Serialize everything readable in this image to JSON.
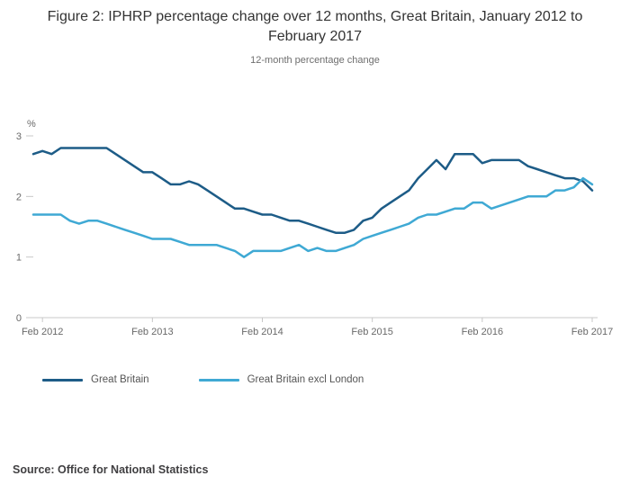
{
  "title": "Figure 2: IPHRP percentage change over 12 months, Great Britain, January 2012 to February 2017",
  "subtitle": "12-month percentage change",
  "source": "Source: Office for National Statistics",
  "colors": {
    "great_britain": "#1d5c87",
    "great_britain_excl_london": "#3fa9d4",
    "axis": "#c8c8c8",
    "tick_text": "#696969"
  },
  "chart_data": {
    "type": "line",
    "title": "Figure 2: IPHRP percentage change over 12 months, Great Britain, January 2012 to February 2017",
    "subtitle": "12-month percentage change",
    "ylabel": "%",
    "xlabel": "",
    "ylim": [
      0,
      3
    ],
    "yticks": [
      0,
      1,
      2,
      3
    ],
    "grid": false,
    "legend_position": "bottom",
    "x_period_start": "Jan 2012",
    "x_period_end": "Feb 2017",
    "xticks": [
      "Feb 2012",
      "Feb 2013",
      "Feb 2014",
      "Feb 2015",
      "Feb 2016",
      "Feb 2017"
    ],
    "xtick_indices": [
      1,
      13,
      25,
      37,
      49,
      61
    ],
    "series": [
      {
        "name": "Great Britain",
        "color": "#1d5c87",
        "values": [
          2.7,
          2.75,
          2.7,
          2.8,
          2.8,
          2.8,
          2.8,
          2.8,
          2.8,
          2.7,
          2.6,
          2.5,
          2.4,
          2.4,
          2.3,
          2.2,
          2.2,
          2.25,
          2.2,
          2.1,
          2.0,
          1.9,
          1.8,
          1.8,
          1.75,
          1.7,
          1.7,
          1.65,
          1.6,
          1.6,
          1.55,
          1.5,
          1.45,
          1.4,
          1.4,
          1.45,
          1.6,
          1.65,
          1.8,
          1.9,
          2.0,
          2.1,
          2.3,
          2.45,
          2.6,
          2.45,
          2.7,
          2.7,
          2.7,
          2.55,
          2.6,
          2.6,
          2.6,
          2.6,
          2.5,
          2.45,
          2.4,
          2.35,
          2.3,
          2.3,
          2.25,
          2.1
        ]
      },
      {
        "name": "Great Britain excl London",
        "color": "#3fa9d4",
        "values": [
          1.7,
          1.7,
          1.7,
          1.7,
          1.6,
          1.55,
          1.6,
          1.6,
          1.55,
          1.5,
          1.45,
          1.4,
          1.35,
          1.3,
          1.3,
          1.3,
          1.25,
          1.2,
          1.2,
          1.2,
          1.2,
          1.15,
          1.1,
          1.0,
          1.1,
          1.1,
          1.1,
          1.1,
          1.15,
          1.2,
          1.1,
          1.15,
          1.1,
          1.1,
          1.15,
          1.2,
          1.3,
          1.35,
          1.4,
          1.45,
          1.5,
          1.55,
          1.65,
          1.7,
          1.7,
          1.75,
          1.8,
          1.8,
          1.9,
          1.9,
          1.8,
          1.85,
          1.9,
          1.95,
          2.0,
          2.0,
          2.0,
          2.1,
          2.1,
          2.15,
          2.3,
          2.2
        ]
      }
    ]
  }
}
